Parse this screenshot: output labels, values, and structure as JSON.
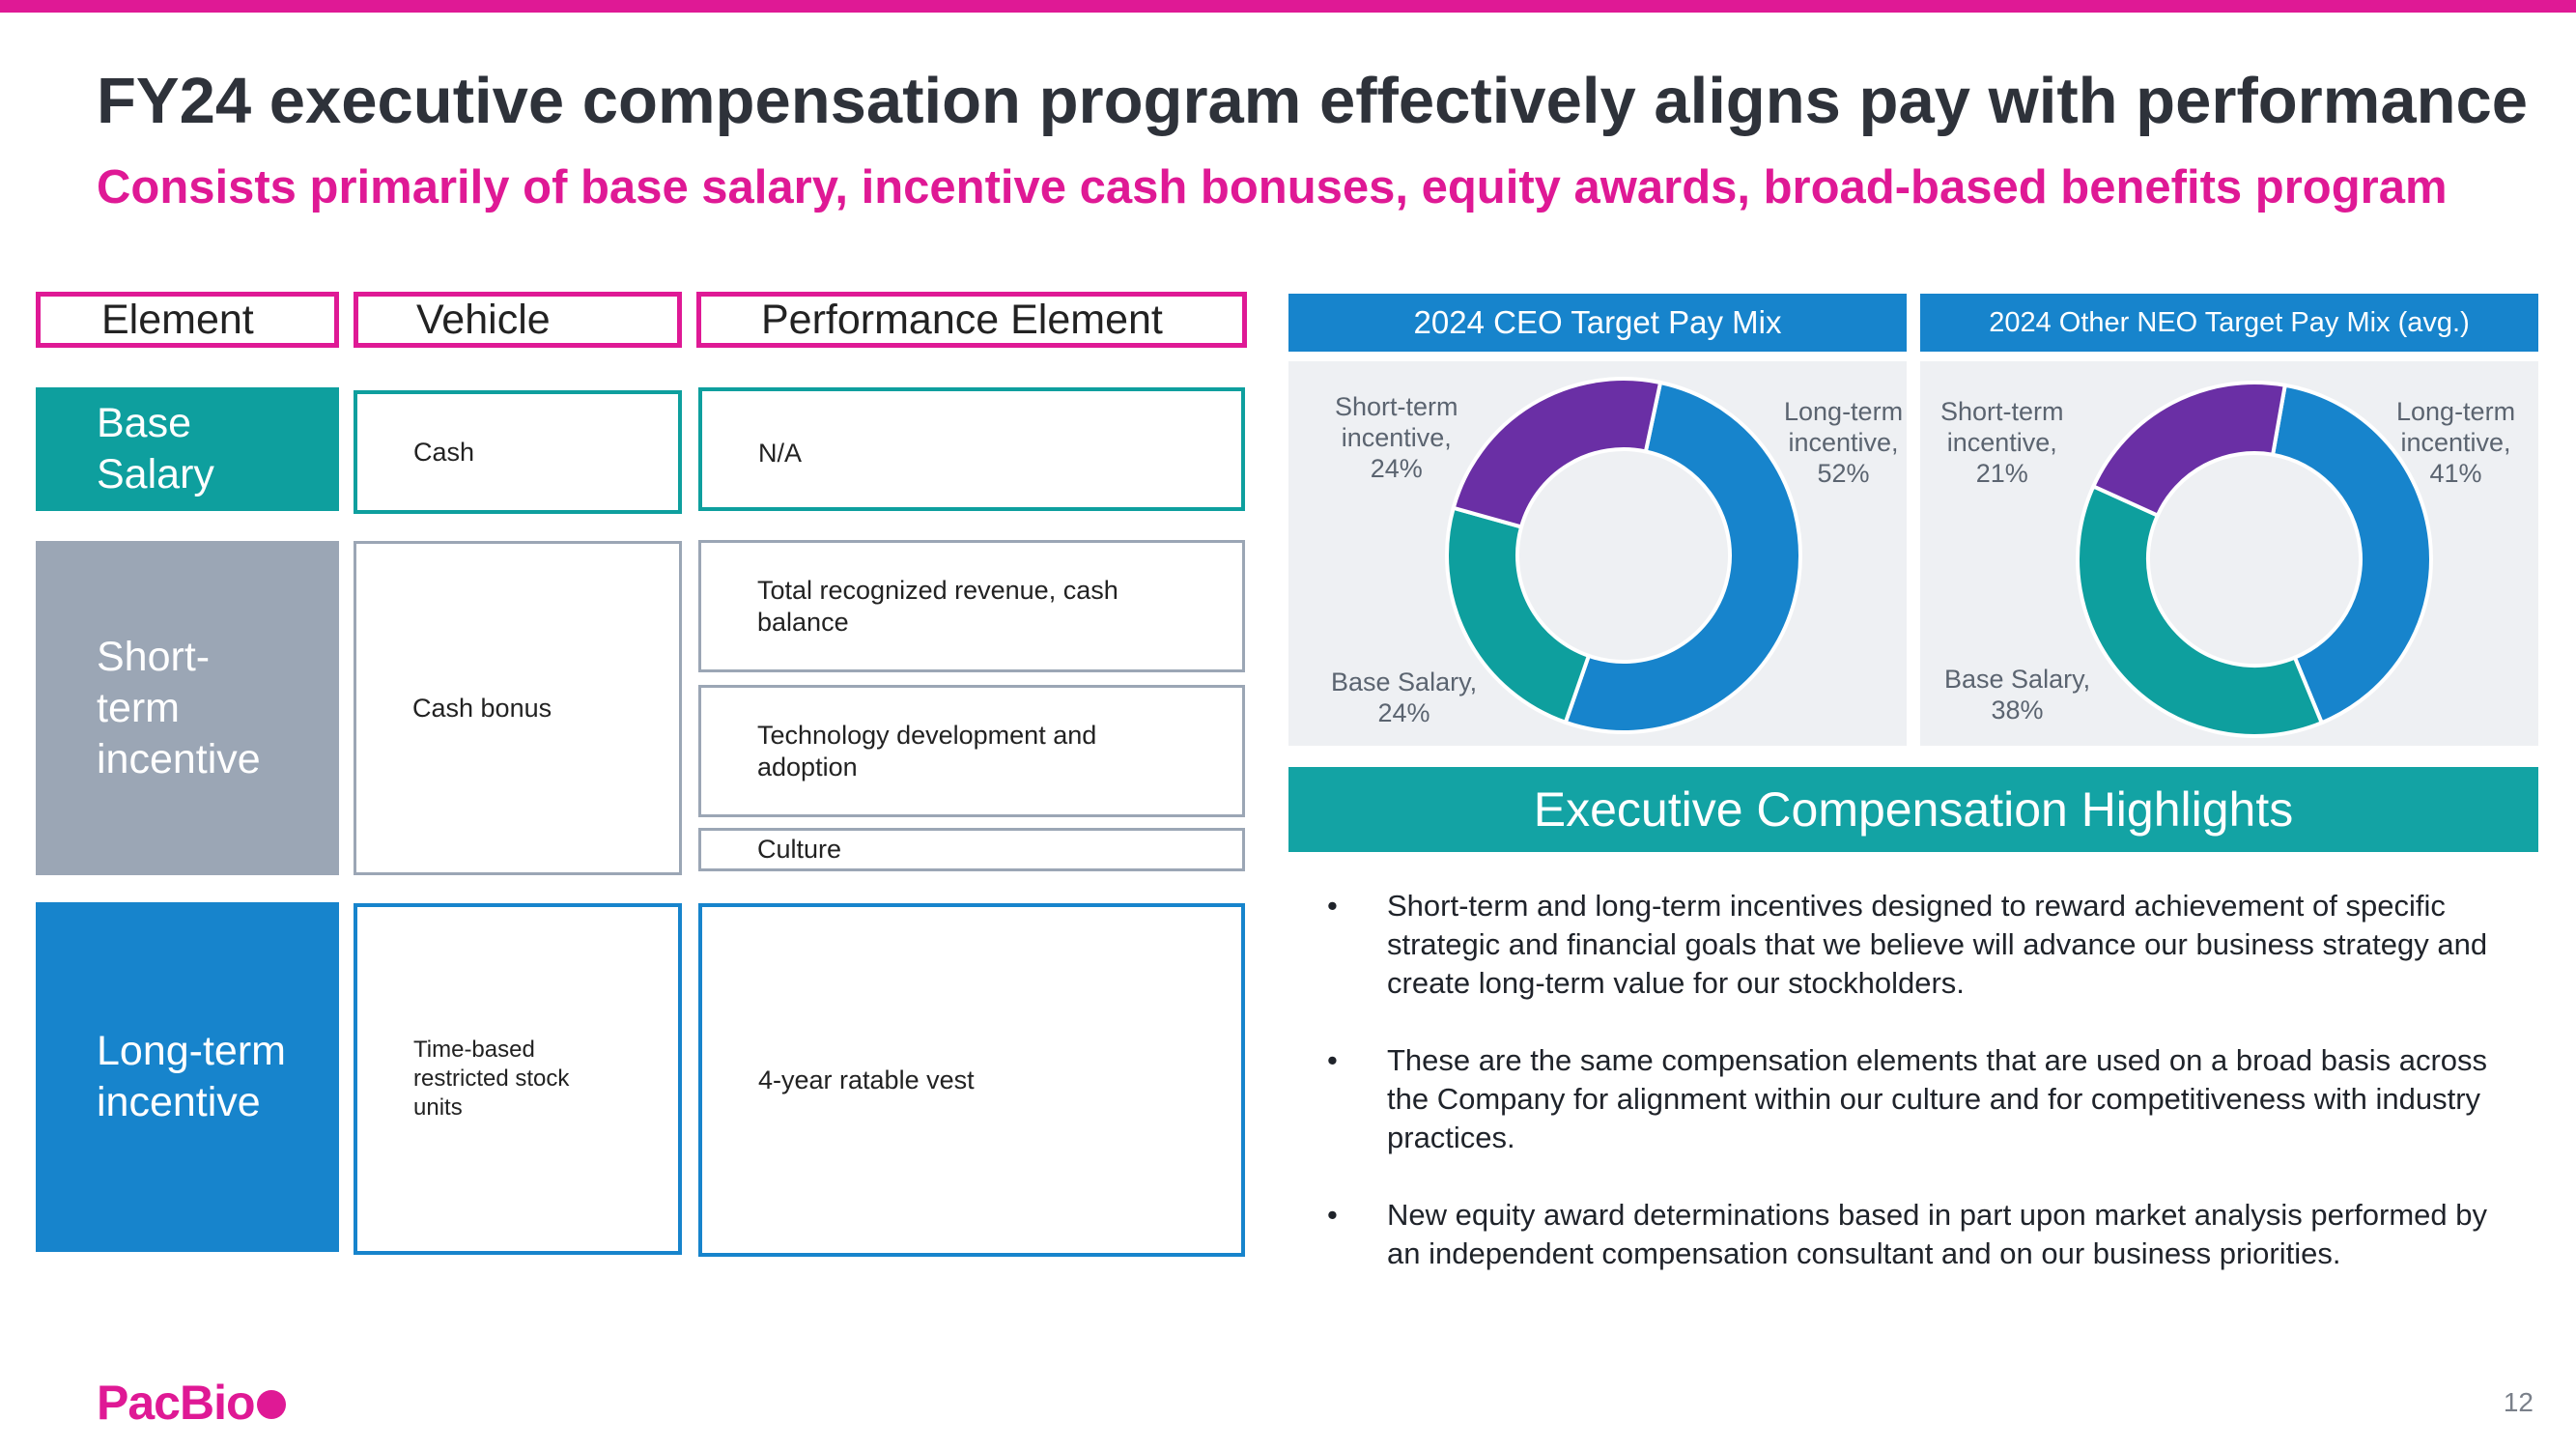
{
  "title": "FY24 executive compensation program effectively aligns pay with performance",
  "subtitle": "Consists primarily of base salary, incentive cash bonuses, equity awards, broad-based benefits program",
  "table": {
    "headers": [
      "Element",
      "Vehicle",
      "Performance Element"
    ],
    "base": {
      "element": "Base Salary",
      "vehicle": "Cash",
      "performance": "N/A"
    },
    "short": {
      "element": "Short-term incentive",
      "vehicle": "Cash bonus",
      "performance": [
        "Total recognized revenue, cash balance",
        "Technology development and adoption",
        "Culture"
      ]
    },
    "long": {
      "element": "Long-term incentive",
      "vehicle": "Time-based restricted stock units",
      "performance": "4-year ratable vest"
    }
  },
  "colors": {
    "pink": "#df1995",
    "teal": "#0e9f9e",
    "gray": "#9ba6b5",
    "blue": "#1784cc",
    "purple": "#6a2fa5"
  },
  "chart_data": [
    {
      "type": "pie",
      "title": "2024 CEO Target Pay Mix",
      "slices": [
        {
          "name": "Long-term incentive",
          "value": 52,
          "color": "#1784cc",
          "label_line1": "Long-term",
          "label_line2": "incentive,",
          "pct": "52%"
        },
        {
          "name": "Base Salary",
          "value": 24,
          "color": "#0e9f9e",
          "label_line1": "Base Salary,",
          "pct": "24%"
        },
        {
          "name": "Short-term incentive",
          "value": 24,
          "color": "#6a2fa5",
          "label_line1": "Short-term",
          "label_line2": "incentive,",
          "pct": "24%"
        }
      ]
    },
    {
      "type": "pie",
      "title": "2024 Other NEO Target Pay Mix (avg.)",
      "slices": [
        {
          "name": "Long-term incentive",
          "value": 41,
          "color": "#1784cc",
          "label_line1": "Long-term",
          "label_line2": "incentive,",
          "pct": "41%"
        },
        {
          "name": "Base Salary",
          "value": 38,
          "color": "#0e9f9e",
          "label_line1": "Base Salary,",
          "pct": "38%"
        },
        {
          "name": "Short-term incentive",
          "value": 21,
          "color": "#6a2fa5",
          "label_line1": "Short-term",
          "label_line2": "incentive,",
          "pct": "21%"
        }
      ]
    }
  ],
  "highlights": {
    "title": "Executive Compensation Highlights",
    "bullet_char": "•",
    "bullets": [
      "Short-term and long-term incentives designed to reward achievement of specific strategic and financial goals that we believe will advance our business strategy and create long-term value for our stockholders.",
      "These are the same compensation elements that are used on a broad basis across the Company for alignment within our culture and for competitiveness with industry practices.",
      "New equity award determinations based in part upon market analysis performed by an independent compensation consultant and on our business priorities."
    ]
  },
  "footer": {
    "logo": "PacBio",
    "page": "12"
  }
}
